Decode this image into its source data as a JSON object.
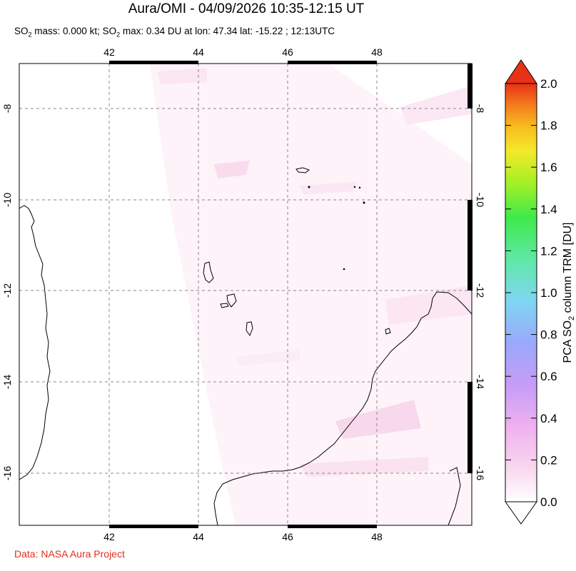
{
  "header": {
    "title": "Aura/OMI - 04/09/2026 10:35-12:15 UT",
    "subtitle_parts": [
      "SO",
      "2",
      " mass: 0.000 kt; SO",
      "2",
      " max: 0.34 DU at lon: 47.34 lat: -15.22 ; 12:13UTC"
    ]
  },
  "footer": {
    "credit": "Data: NASA Aura Project"
  },
  "map": {
    "lon_range": [
      40,
      50
    ],
    "lat_range": [
      -17.2,
      -7.2
    ],
    "lon_ticks": [
      {
        "value": 42,
        "label": "42"
      },
      {
        "value": 44,
        "label": "44"
      },
      {
        "value": 46,
        "label": "46"
      },
      {
        "value": 48,
        "label": "48"
      }
    ],
    "lat_ticks": [
      {
        "value": -8,
        "label": "-8"
      },
      {
        "value": -10,
        "label": "-10"
      },
      {
        "value": -12,
        "label": "-12"
      },
      {
        "value": -14,
        "label": "-14"
      },
      {
        "value": -16,
        "label": "-16"
      }
    ],
    "gridlines": true,
    "coastlines": [
      "Mozambique coast",
      "Comoros islands",
      "Madagascar north coast",
      "Aldabra / Glorioso islets"
    ]
  },
  "colorbar": {
    "title_parts": [
      "PCA SO",
      "2",
      " column TRM [DU]"
    ],
    "min": 0.0,
    "max": 2.0,
    "ticks": [
      "0.0",
      "0.2",
      "0.4",
      "0.6",
      "0.8",
      "1.0",
      "1.2",
      "1.4",
      "1.6",
      "1.8",
      "2.0"
    ],
    "colors": [
      "#ffffff",
      "#f9d7ee",
      "#efb1ef",
      "#c59cf7",
      "#9aa9fb",
      "#7fd6f2",
      "#5fe8a5",
      "#3fe94a",
      "#a2f026",
      "#f5e82a",
      "#f7b91f",
      "#f37a1c",
      "#e83218"
    ]
  }
}
